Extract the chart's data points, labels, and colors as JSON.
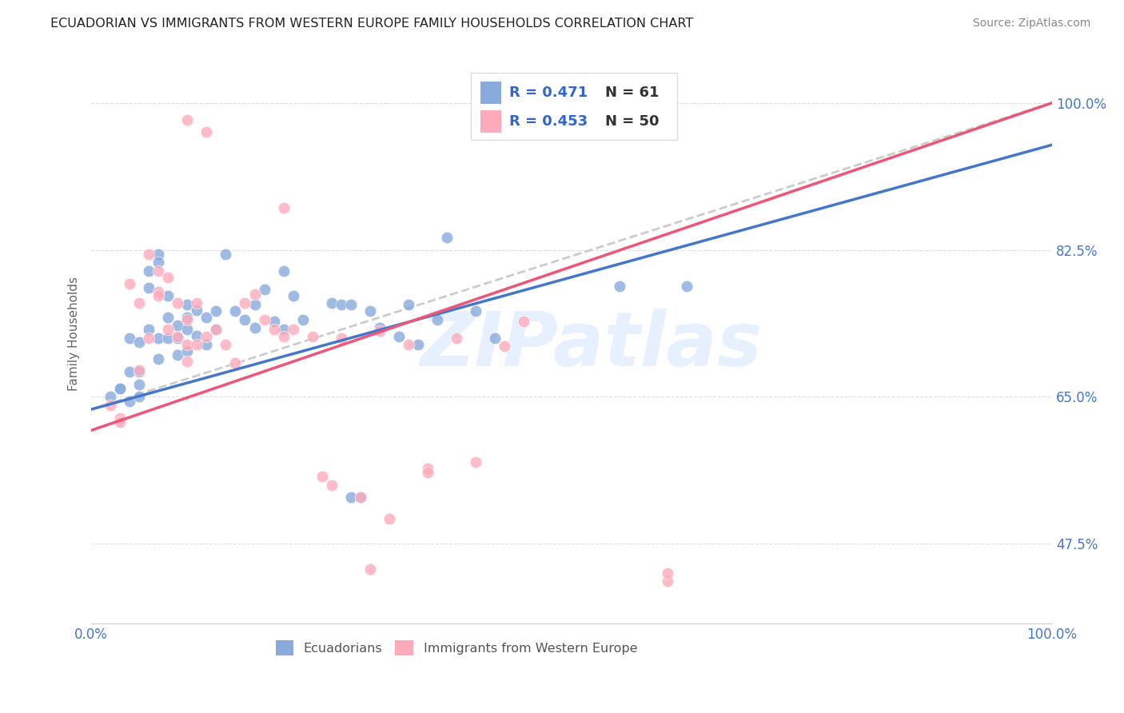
{
  "title": "ECUADORIAN VS IMMIGRANTS FROM WESTERN EUROPE FAMILY HOUSEHOLDS CORRELATION CHART",
  "source": "Source: ZipAtlas.com",
  "ylabel": "Family Households",
  "xlim": [
    0.0,
    1.0
  ],
  "ylim": [
    0.38,
    1.07
  ],
  "yticks": [
    0.475,
    0.65,
    0.825,
    1.0
  ],
  "ytick_labels": [
    "47.5%",
    "65.0%",
    "82.5%",
    "100.0%"
  ],
  "xtick_labels": [
    "0.0%",
    "100.0%"
  ],
  "xtick_positions": [
    0.0,
    1.0
  ],
  "blue_color": "#88AADD",
  "pink_color": "#FFAABB",
  "trendline_blue_color": "#4477CC",
  "trendline_pink_color": "#EE5577",
  "dashed_color": "#CCCCCC",
  "grid_color": "#DDDDDD",
  "watermark": "ZIPatlas",
  "background_color": "#FFFFFF",
  "legend_r_blue": "R = 0.471",
  "legend_n_blue": "N = 61",
  "legend_r_pink": "R = 0.453",
  "legend_n_pink": "N = 50",
  "blue_trendline_x": [
    0.0,
    1.0
  ],
  "blue_trendline_y": [
    0.635,
    0.95
  ],
  "pink_trendline_x": [
    0.0,
    1.0
  ],
  "pink_trendline_y": [
    0.61,
    1.0
  ],
  "dashed_line_x": [
    0.0,
    1.0
  ],
  "dashed_line_y": [
    0.635,
    1.0
  ],
  "blue_points_x": [
    0.02,
    0.03,
    0.03,
    0.04,
    0.04,
    0.04,
    0.05,
    0.05,
    0.05,
    0.05,
    0.06,
    0.06,
    0.06,
    0.07,
    0.07,
    0.07,
    0.07,
    0.08,
    0.08,
    0.08,
    0.09,
    0.09,
    0.09,
    0.1,
    0.1,
    0.1,
    0.1,
    0.11,
    0.11,
    0.12,
    0.12,
    0.13,
    0.13,
    0.14,
    0.15,
    0.16,
    0.17,
    0.17,
    0.18,
    0.19,
    0.2,
    0.2,
    0.21,
    0.22,
    0.25,
    0.26,
    0.27,
    0.27,
    0.28,
    0.29,
    0.3,
    0.32,
    0.33,
    0.34,
    0.36,
    0.37,
    0.4,
    0.42,
    0.55,
    0.62
  ],
  "blue_points_y": [
    0.65,
    0.66,
    0.66,
    0.72,
    0.68,
    0.645,
    0.715,
    0.68,
    0.665,
    0.65,
    0.8,
    0.78,
    0.73,
    0.82,
    0.81,
    0.72,
    0.695,
    0.77,
    0.745,
    0.72,
    0.735,
    0.72,
    0.7,
    0.76,
    0.745,
    0.73,
    0.705,
    0.753,
    0.723,
    0.745,
    0.712,
    0.752,
    0.73,
    0.82,
    0.752,
    0.742,
    0.76,
    0.732,
    0.778,
    0.74,
    0.8,
    0.73,
    0.77,
    0.742,
    0.762,
    0.76,
    0.76,
    0.53,
    0.53,
    0.752,
    0.732,
    0.722,
    0.76,
    0.712,
    0.742,
    0.84,
    0.752,
    0.72,
    0.782,
    0.782
  ],
  "pink_points_x": [
    0.02,
    0.03,
    0.04,
    0.05,
    0.05,
    0.06,
    0.06,
    0.07,
    0.07,
    0.08,
    0.08,
    0.09,
    0.09,
    0.1,
    0.1,
    0.1,
    0.11,
    0.11,
    0.12,
    0.13,
    0.14,
    0.15,
    0.16,
    0.17,
    0.18,
    0.19,
    0.2,
    0.21,
    0.23,
    0.24,
    0.25,
    0.26,
    0.28,
    0.3,
    0.31,
    0.33,
    0.35,
    0.38,
    0.4,
    0.43,
    0.45,
    0.6,
    0.03,
    0.07,
    0.1,
    0.12,
    0.2,
    0.29,
    0.35,
    0.6
  ],
  "pink_points_y": [
    0.64,
    0.625,
    0.785,
    0.762,
    0.682,
    0.82,
    0.72,
    0.8,
    0.775,
    0.792,
    0.73,
    0.762,
    0.722,
    0.742,
    0.712,
    0.692,
    0.762,
    0.712,
    0.722,
    0.73,
    0.712,
    0.69,
    0.762,
    0.772,
    0.742,
    0.73,
    0.722,
    0.73,
    0.722,
    0.555,
    0.545,
    0.72,
    0.53,
    0.728,
    0.505,
    0.712,
    0.565,
    0.72,
    0.572,
    0.71,
    0.74,
    0.43,
    0.62,
    0.77,
    0.98,
    0.965,
    0.875,
    0.445,
    0.56,
    0.44
  ]
}
